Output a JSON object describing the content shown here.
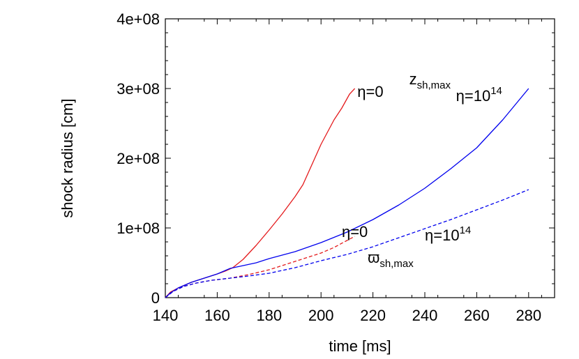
{
  "chart_data": {
    "type": "line",
    "title": "",
    "xlabel": "time [ms]",
    "ylabel": "shock radius [cm]",
    "xlim": [
      140,
      290
    ],
    "ylim": [
      0,
      400000000
    ],
    "x_ticks": [
      140,
      160,
      180,
      200,
      220,
      240,
      260,
      280
    ],
    "x_tick_labels": [
      "140",
      "160",
      "180",
      "200",
      "220",
      "240",
      "260",
      "280"
    ],
    "y_ticks": [
      0,
      100000000,
      200000000,
      300000000,
      400000000
    ],
    "y_tick_labels": [
      "0",
      "1e+08",
      "2e+08",
      "3e+08",
      "4e+08"
    ],
    "grid": false,
    "series": [
      {
        "color": "#e41a1c",
        "dash": "solid",
        "points": [
          [
            140,
            0
          ],
          [
            142,
            8000000
          ],
          [
            145,
            14000000
          ],
          [
            150,
            22000000
          ],
          [
            155,
            28000000
          ],
          [
            160,
            34000000
          ],
          [
            163,
            38000000
          ],
          [
            166,
            43000000
          ],
          [
            170,
            55000000
          ],
          [
            175,
            75000000
          ],
          [
            180,
            97000000
          ],
          [
            185,
            120000000
          ],
          [
            190,
            145000000
          ],
          [
            193,
            162000000
          ],
          [
            197,
            195000000
          ],
          [
            200,
            220000000
          ],
          [
            205,
            255000000
          ],
          [
            208,
            272000000
          ],
          [
            211,
            292000000
          ],
          [
            213,
            300000000
          ]
        ]
      },
      {
        "color": "#0000ee",
        "dash": "solid",
        "points": [
          [
            140,
            0
          ],
          [
            142,
            7000000
          ],
          [
            145,
            14000000
          ],
          [
            150,
            22000000
          ],
          [
            155,
            28000000
          ],
          [
            160,
            34000000
          ],
          [
            165,
            42000000
          ],
          [
            170,
            46000000
          ],
          [
            175,
            50000000
          ],
          [
            180,
            56000000
          ],
          [
            190,
            66000000
          ],
          [
            200,
            79000000
          ],
          [
            210,
            94000000
          ],
          [
            220,
            112000000
          ],
          [
            230,
            133000000
          ],
          [
            240,
            157000000
          ],
          [
            250,
            185000000
          ],
          [
            260,
            215000000
          ],
          [
            270,
            255000000
          ],
          [
            280,
            300000000
          ]
        ]
      },
      {
        "color": "#e41a1c",
        "dash": "dashed",
        "points": [
          [
            140,
            0
          ],
          [
            143,
            9000000
          ],
          [
            147,
            16000000
          ],
          [
            152,
            21000000
          ],
          [
            158,
            25000000
          ],
          [
            165,
            28000000
          ],
          [
            172,
            33000000
          ],
          [
            180,
            40000000
          ],
          [
            190,
            52000000
          ],
          [
            200,
            64000000
          ],
          [
            205,
            72000000
          ],
          [
            210,
            82000000
          ],
          [
            213,
            88000000
          ]
        ]
      },
      {
        "color": "#0000ee",
        "dash": "dashed",
        "points": [
          [
            140,
            0
          ],
          [
            143,
            9000000
          ],
          [
            147,
            16000000
          ],
          [
            152,
            21000000
          ],
          [
            158,
            25000000
          ],
          [
            165,
            28000000
          ],
          [
            172,
            31000000
          ],
          [
            180,
            35000000
          ],
          [
            190,
            43000000
          ],
          [
            200,
            53000000
          ],
          [
            210,
            62000000
          ],
          [
            220,
            73000000
          ],
          [
            230,
            86000000
          ],
          [
            240,
            99000000
          ],
          [
            250,
            112000000
          ],
          [
            260,
            126000000
          ],
          [
            270,
            140000000
          ],
          [
            280,
            155000000
          ]
        ]
      }
    ],
    "annotations": [
      {
        "text": "η=0",
        "sup": "",
        "x": 214,
        "y": 288000000,
        "anchor": "start"
      },
      {
        "text": "z",
        "sub": "sh,max",
        "x": 234,
        "y": 306000000,
        "anchor": "start"
      },
      {
        "text": "η=10",
        "sup": "14",
        "x": 252,
        "y": 282000000,
        "anchor": "start"
      },
      {
        "text": "η=0",
        "sup": "",
        "x": 208,
        "y": 87000000,
        "anchor": "start"
      },
      {
        "text": "η=10",
        "sup": "14",
        "x": 240,
        "y": 82000000,
        "anchor": "start"
      },
      {
        "text": "ϖ",
        "sub": "sh,max",
        "x": 218,
        "y": 50000000,
        "anchor": "start"
      }
    ]
  }
}
